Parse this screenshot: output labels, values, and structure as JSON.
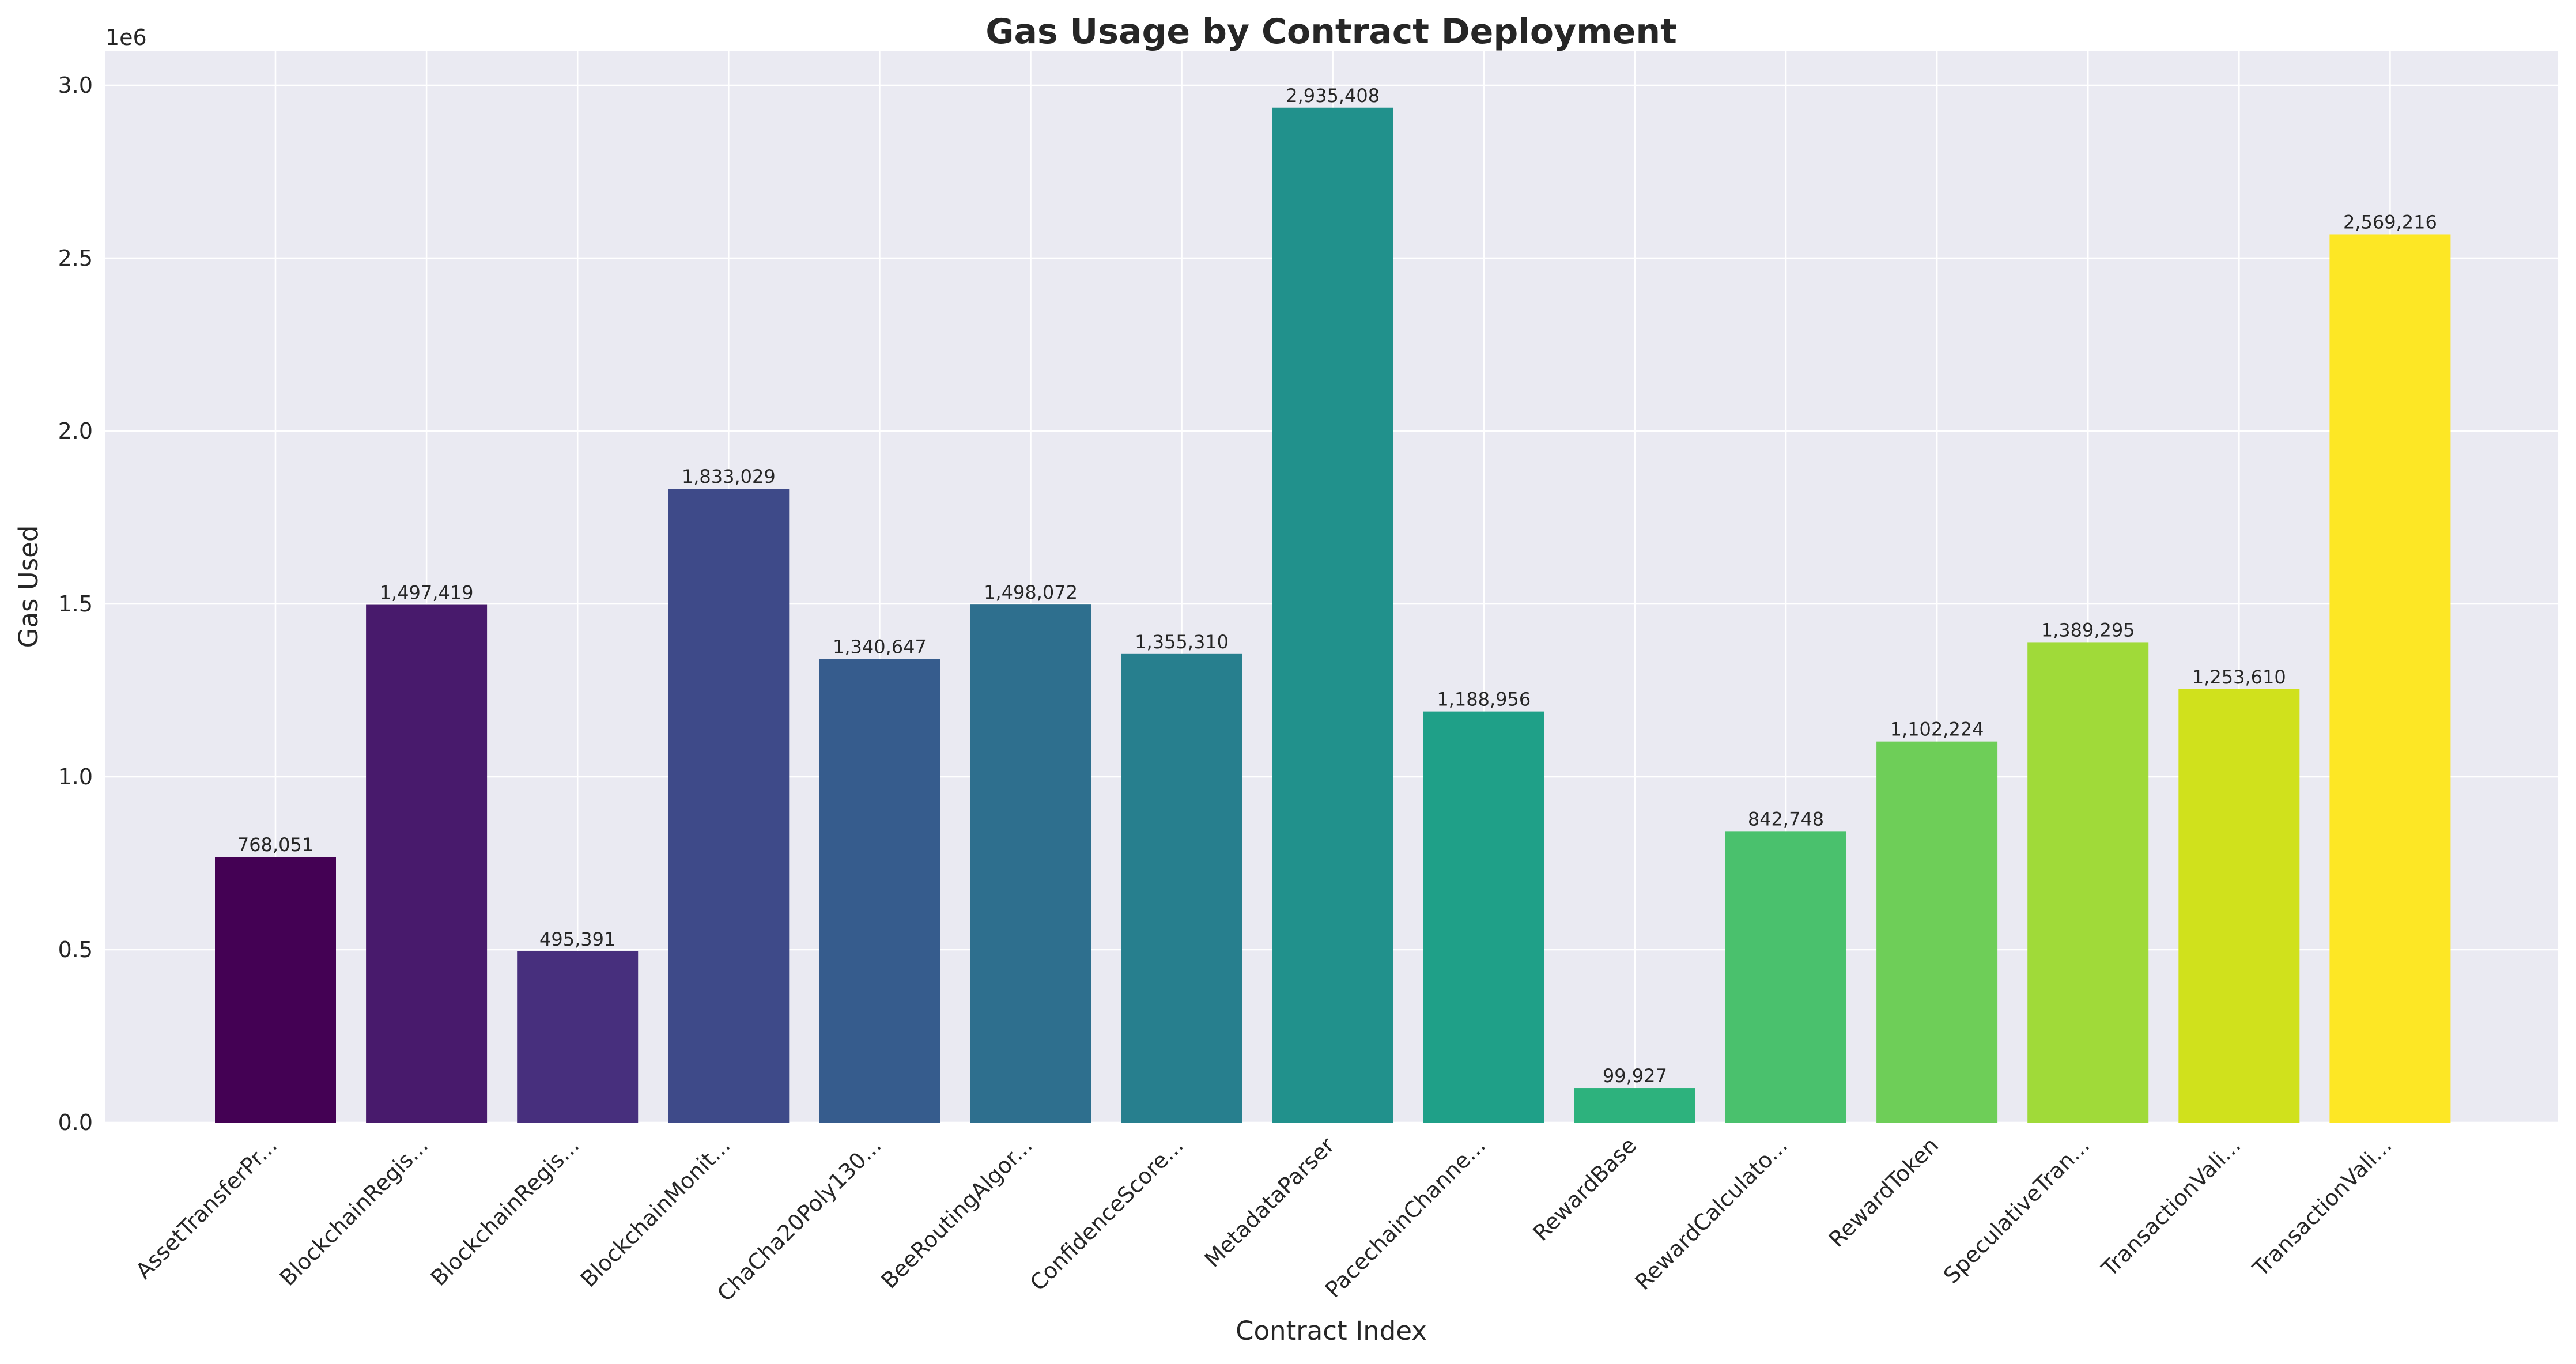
{
  "chart_data": {
    "type": "bar",
    "title": "Gas Usage by Contract Deployment",
    "xlabel": "Contract Index",
    "ylabel": "Gas Used",
    "y_offset_label": "1e6",
    "ylim": [
      0,
      3100000
    ],
    "yticks": [
      0,
      500000,
      1000000,
      1500000,
      2000000,
      2500000,
      3000000
    ],
    "ytick_labels": [
      "0.0",
      "0.5",
      "1.0",
      "1.5",
      "2.0",
      "2.5",
      "3.0"
    ],
    "grid": true,
    "categories": [
      "AssetTransferPr...",
      "BlockchainRegis...",
      "BlockchainRegis...",
      "BlockchainMonit...",
      "ChaCha20Poly130...",
      "BeeRoutingAlgor...",
      "ConfidenceScore...",
      "MetadataParser",
      "PacechainChanne...",
      "RewardBase",
      "RewardCalculato...",
      "RewardToken",
      "SpeculativeTran...",
      "TransactionVali...",
      "TransactionVali..."
    ],
    "values": [
      768051,
      1497419,
      495391,
      1833029,
      1340647,
      1498072,
      1355310,
      2935408,
      1188956,
      99927,
      842748,
      1102224,
      1389295,
      1253610,
      2569216
    ],
    "value_labels": [
      "768,051",
      "1,497,419",
      "495,391",
      "1,833,029",
      "1,340,647",
      "1,498,072",
      "1,355,310",
      "2,935,408",
      "1,188,956",
      "99,927",
      "842,748",
      "1,102,224",
      "1,389,295",
      "1,253,610",
      "2,569,216"
    ],
    "colors": [
      "#440154",
      "#481a6c",
      "#472f7d",
      "#414487",
      "#39568c",
      "#31688e",
      "#2a788e",
      "#23888e",
      "#1f988b",
      "#22a884",
      "#35b779",
      "#54c568",
      "#7ad151",
      "#a5db36",
      "#d2e21b",
      "#fde725"
    ],
    "bar_colors": [
      "#440154",
      "#481a6c",
      "#472f7d",
      "#3e4a89",
      "#365c8d",
      "#2e6f8e",
      "#277f8e",
      "#21918c",
      "#1fa088",
      "#2db27d",
      "#4ac16d",
      "#6ece58",
      "#a0da39",
      "#d0e11c",
      "#fde725"
    ],
    "background": "#eaeaf2",
    "grid_color": "#ffffff"
  }
}
